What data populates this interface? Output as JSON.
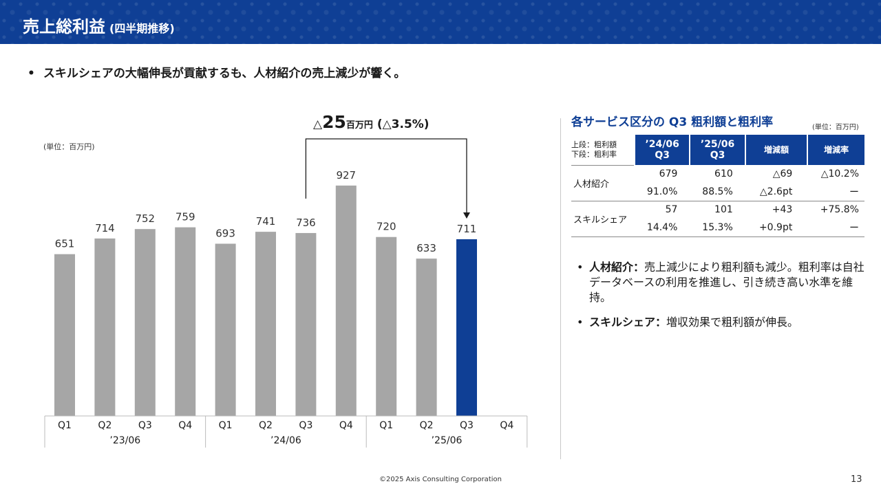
{
  "header": {
    "title": "売上総利益",
    "subtitle": "(四半期推移)"
  },
  "lead": {
    "bullet": "•",
    "text": "スキルシェアの大幅伸長が貢献するも、人材紹介の売上減少が響く。"
  },
  "chart": {
    "unit": "(単位：百万円)",
    "delta": {
      "prefix": "△",
      "value": "25",
      "unit": "百万円",
      "pct": "(△3.5%)"
    }
  },
  "chart_data": {
    "type": "bar",
    "categories": [
      "Q1",
      "Q2",
      "Q3",
      "Q4",
      "Q1",
      "Q2",
      "Q3",
      "Q4",
      "Q1",
      "Q2",
      "Q3",
      "Q4"
    ],
    "groups": [
      {
        "label": "’23/06",
        "quarters": [
          "Q1",
          "Q2",
          "Q3",
          "Q4"
        ]
      },
      {
        "label": "’24/06",
        "quarters": [
          "Q1",
          "Q2",
          "Q3",
          "Q4"
        ]
      },
      {
        "label": "’25/06",
        "quarters": [
          "Q1",
          "Q2",
          "Q3",
          "Q4"
        ]
      }
    ],
    "values": [
      651,
      714,
      752,
      759,
      693,
      741,
      736,
      927,
      720,
      633,
      711,
      null
    ],
    "highlight_index": 10,
    "comparison": {
      "from_index": 6,
      "to_index": 10
    },
    "ylim": [
      0,
      1000
    ],
    "grid": false,
    "colors": {
      "bar": "#a6a6a6",
      "highlight": "#0f3f95",
      "label": "#333333"
    }
  },
  "table": {
    "title": "各サービス区分の Q3 粗利額と粗利率",
    "unit": "(単位：百万円)",
    "row_label_line1": "上段：粗利額",
    "row_label_line2": "下段：粗利率",
    "columns": [
      {
        "line1": "’24/06",
        "line2": "Q3"
      },
      {
        "line1": "’25/06",
        "line2": "Q3"
      },
      {
        "line1": "増減額",
        "line2": ""
      },
      {
        "line1": "増減率",
        "line2": ""
      }
    ],
    "rows": [
      {
        "name": "人材紹介",
        "top": [
          "679",
          "610",
          "△69",
          "△10.2%"
        ],
        "bottom": [
          "91.0%",
          "88.5%",
          "△2.6pt",
          "ー"
        ]
      },
      {
        "name": "スキルシェア",
        "top": [
          "57",
          "101",
          "+43",
          "+75.8%"
        ],
        "bottom": [
          "14.4%",
          "15.3%",
          "+0.9pt",
          "ー"
        ]
      }
    ]
  },
  "notes": [
    {
      "bullet": "•",
      "head": "人材紹介：",
      "body": "売上減少により粗利額も減少。粗利率は自社データベースの利用を推進し、引き続き高い水準を維持。"
    },
    {
      "bullet": "•",
      "head": "スキルシェア：",
      "body": "増収効果で粗利額が伸長。"
    }
  ],
  "footer": {
    "copyright": "©2025 Axis Consulting Corporation",
    "page": "13"
  },
  "colors": {
    "brand": "#0f3f95",
    "bar_gray": "#a6a6a6"
  }
}
